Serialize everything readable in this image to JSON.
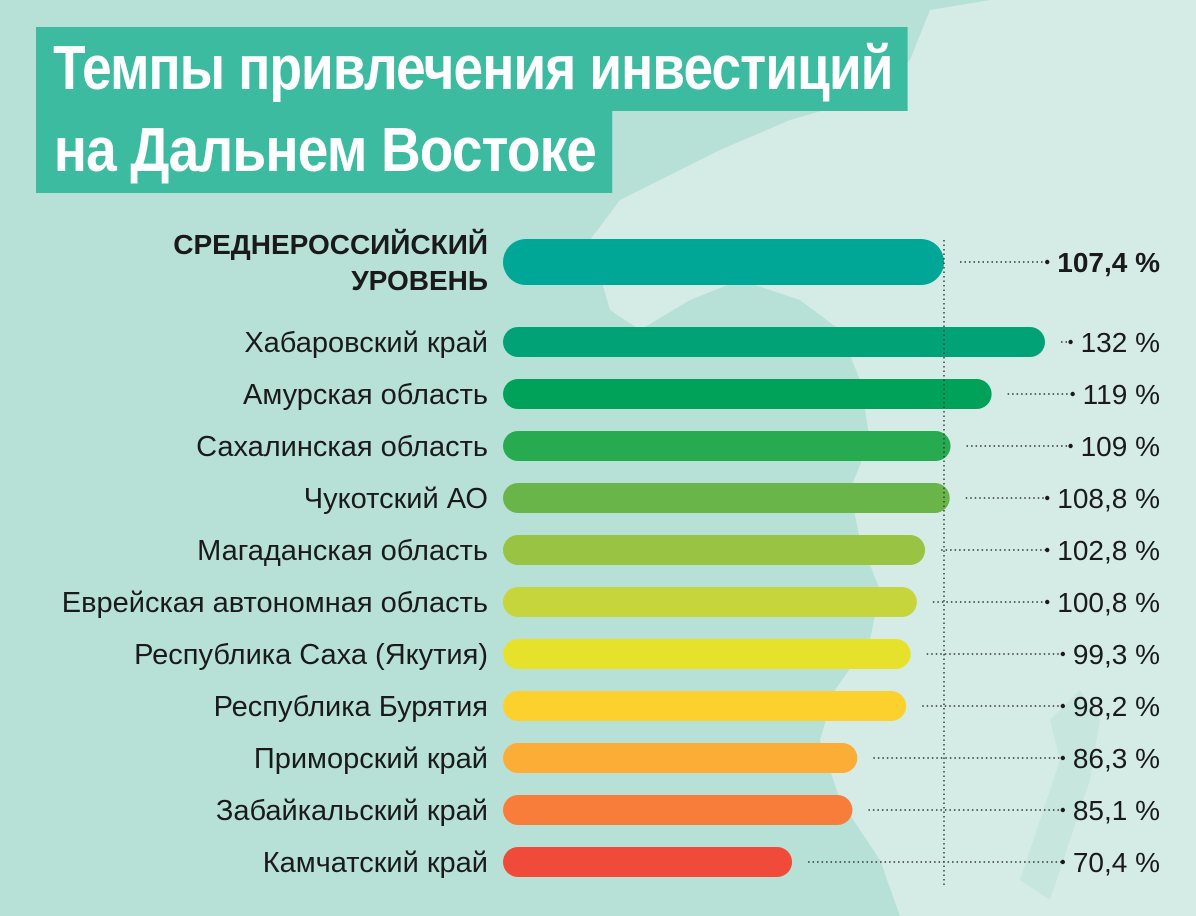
{
  "title_lines": [
    "Темпы привлечения инвестиций",
    "на Дальнем Востоке"
  ],
  "chart_data": {
    "type": "bar",
    "orientation": "horizontal",
    "unit": "%",
    "reference_line_value": 107.4,
    "rows": [
      {
        "label_lines": [
          "СРЕДНЕРОССИЙСКИЙ",
          "УРОВЕНЬ"
        ],
        "value": 107.4,
        "display": "107,4 %",
        "color": "#00a797",
        "highlight": true
      },
      {
        "label_lines": [
          "Хабаровский край"
        ],
        "value": 132,
        "display": "132 %",
        "color": "#00a276"
      },
      {
        "label_lines": [
          "Амурская область"
        ],
        "value": 119,
        "display": "119 %",
        "color": "#00a159"
      },
      {
        "label_lines": [
          "Сахалинская область"
        ],
        "value": 109,
        "display": "109 %",
        "color": "#28aa50"
      },
      {
        "label_lines": [
          "Чукотский АО"
        ],
        "value": 108.8,
        "display": "108,8 %",
        "color": "#6ab54a"
      },
      {
        "label_lines": [
          "Магаданская область"
        ],
        "value": 102.8,
        "display": "102,8 %",
        "color": "#99c343"
      },
      {
        "label_lines": [
          "Еврейская автономная область"
        ],
        "value": 100.8,
        "display": "100,8 %",
        "color": "#c6d53c"
      },
      {
        "label_lines": [
          "Республика Саха (Якутия)"
        ],
        "value": 99.3,
        "display": "99,3 %",
        "color": "#e6e22c"
      },
      {
        "label_lines": [
          "Республика Бурятия"
        ],
        "value": 98.2,
        "display": "98,2 %",
        "color": "#fdd12d"
      },
      {
        "label_lines": [
          "Приморский край"
        ],
        "value": 86.3,
        "display": "86,3 %",
        "color": "#fbad35"
      },
      {
        "label_lines": [
          "Забайкальский край"
        ],
        "value": 85.1,
        "display": "85,1 %",
        "color": "#f87d3a"
      },
      {
        "label_lines": [
          "Камчатский край"
        ],
        "value": 70.4,
        "display": "70,4 %",
        "color": "#f04b3a"
      }
    ]
  },
  "colors": {
    "background": "#b7e0d7",
    "map": "#d5ece6",
    "title_box": "#3dbba1",
    "text": "#1a1a1a"
  }
}
